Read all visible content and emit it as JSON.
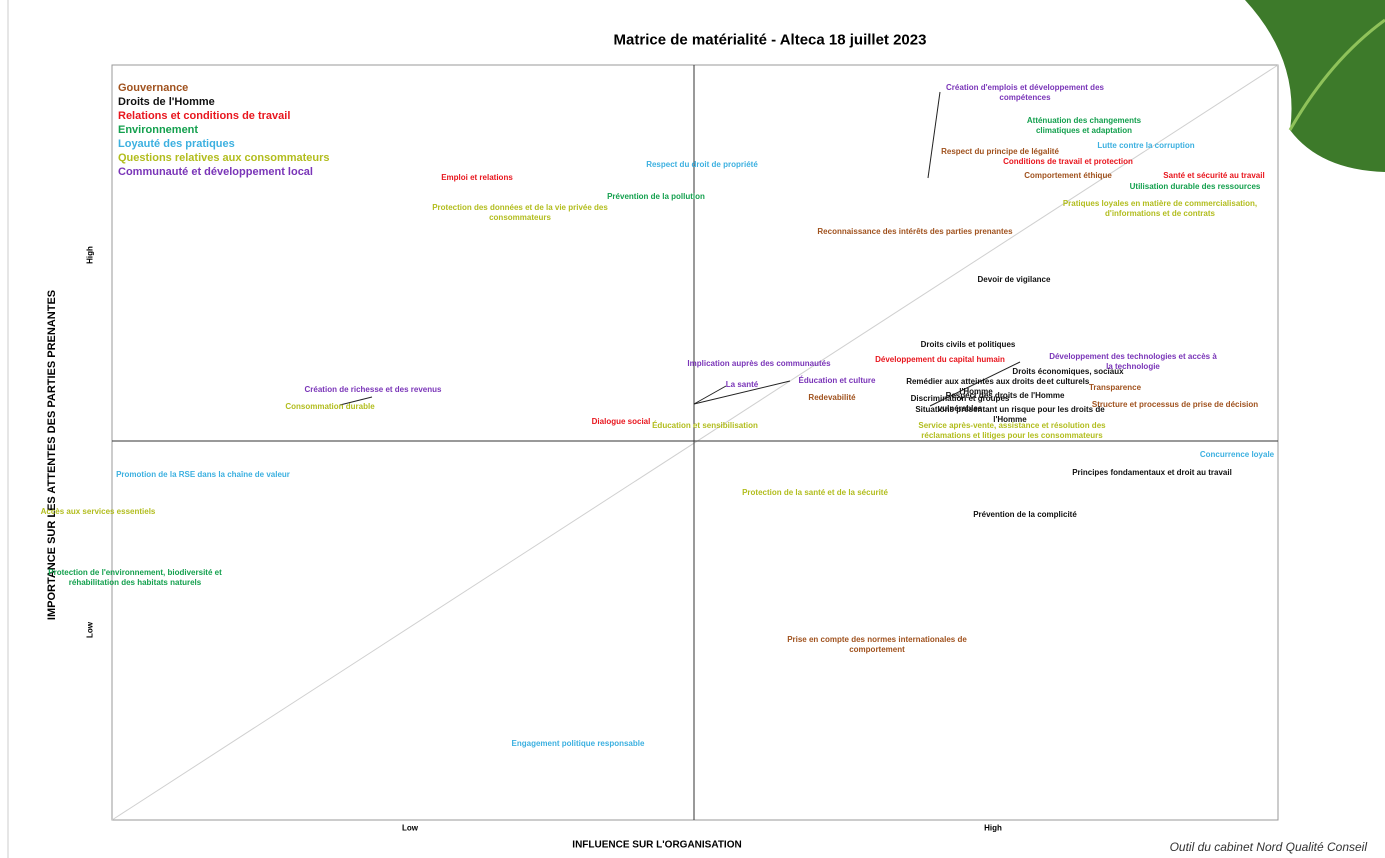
{
  "title": "Matrice de matérialité - Alteca 18 juillet 2023",
  "x_axis": {
    "label": "INFLUENCE SUR L'ORGANISATION",
    "low": "Low",
    "high": "High"
  },
  "y_axis": {
    "label": "IMPORTANCE SUR LES ATTENTES DES PARTIES PRENANTES",
    "low": "Low",
    "high": "High"
  },
  "groups": [
    {
      "name": "Gouvernance",
      "color": "#a0521e",
      "items": [
        "Respect du principe de légalité",
        "Comportement éthique",
        "Reconnaissance des intérêts des parties prenantes",
        "Redevabilité",
        "Transparence",
        "Structure et processus de prise de décision",
        "Prise en compte des normes internationales de comportement"
      ]
    },
    {
      "name": "Droits de l'Homme",
      "color": "#111111",
      "items": [
        "Devoir de vigilance",
        "Droits civils et politiques",
        "Droits économiques, sociaux et culturels",
        "Remédier aux atteintes aux droits de l'Homme",
        "Respect des droits de l'Homme",
        "Discrimination et groupes vulnérables",
        "Situations présentant un risque pour les droits de l'Homme",
        "Principes fondamentaux et droit au travail",
        "Prévention de la complicité"
      ]
    },
    {
      "name": "Relations et conditions de travail",
      "color": "#e8161e",
      "items": [
        "Emploi et relations",
        "Conditions de travail et protection",
        "Santé et sécurité au travail",
        "Développement du capital humain",
        "Dialogue social"
      ]
    },
    {
      "name": "Environnement",
      "color": "#14a04e",
      "items": [
        "Atténuation des changements climatiques et adaptation",
        "Utilisation durable des ressources",
        "Prévention de la pollution",
        "Protection de l'environnement, biodiversité et réhabilitation des habitats naturels"
      ]
    },
    {
      "name": "Loyauté des pratiques",
      "color": "#3cb0e0",
      "items": [
        "Respect du droit de propriété",
        "Lutte contre la corruption",
        "Concurrence loyale",
        "Promotion de la RSE dans la chaîne de valeur",
        "Engagement politique responsable"
      ]
    },
    {
      "name": "Questions relatives aux consommateurs",
      "color": "#b2bd1e",
      "items": [
        "Protection des données et de la vie privée des consommateurs",
        "Pratiques loyales en matière de commercialisation, d'informations et de contrats",
        "Consommation durable",
        "Éducation et sensibilisation",
        "Service après-vente, assistance et résolution des réclamations et litiges pour les consommateurs",
        "Protection de la santé et de la sécurité",
        "Accès aux services essentiels"
      ]
    },
    {
      "name": "Communauté et développement local",
      "color": "#7a35b8",
      "items": [
        "Création d'emplois et développement des compétences",
        "Implication auprès des communautés",
        "Développement des technologies et accès à la technologie",
        "Création de richesse et des revenus",
        "La santé",
        "Éducation et culture"
      ]
    }
  ],
  "caption": "Outil du cabinet Nord Qualité Conseil"
}
